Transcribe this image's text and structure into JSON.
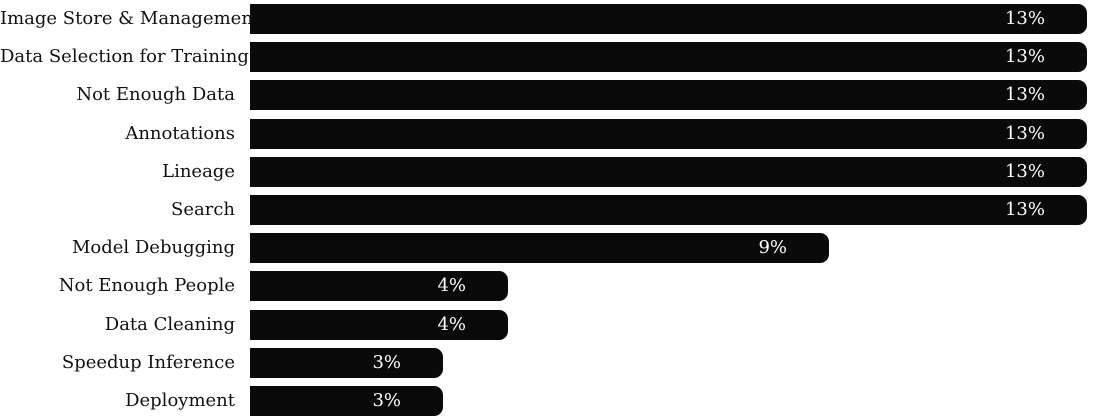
{
  "chart_data": {
    "type": "bar",
    "orientation": "horizontal",
    "title": "",
    "xlabel": "",
    "ylabel": "",
    "grid": false,
    "legend": false,
    "xlim": [
      0,
      13
    ],
    "categories": [
      "Image Store & Management",
      "Data Selection for Training",
      "Not Enough Data",
      "Annotations",
      "Lineage",
      "Search",
      "Model Debugging",
      "Not Enough People",
      "Data Cleaning",
      "Speedup Inference",
      "Deployment"
    ],
    "values": [
      13,
      13,
      13,
      13,
      13,
      13,
      9,
      4,
      4,
      3,
      3
    ],
    "value_labels": [
      "13%",
      "13%",
      "13%",
      "13%",
      "13%",
      "13%",
      "9%",
      "4%",
      "4%",
      "3%",
      "3%"
    ],
    "colors": {
      "bar": "#0a0a0a",
      "value_label": "#ffffff",
      "category_label": "#111111",
      "background": "#ffffff"
    }
  }
}
